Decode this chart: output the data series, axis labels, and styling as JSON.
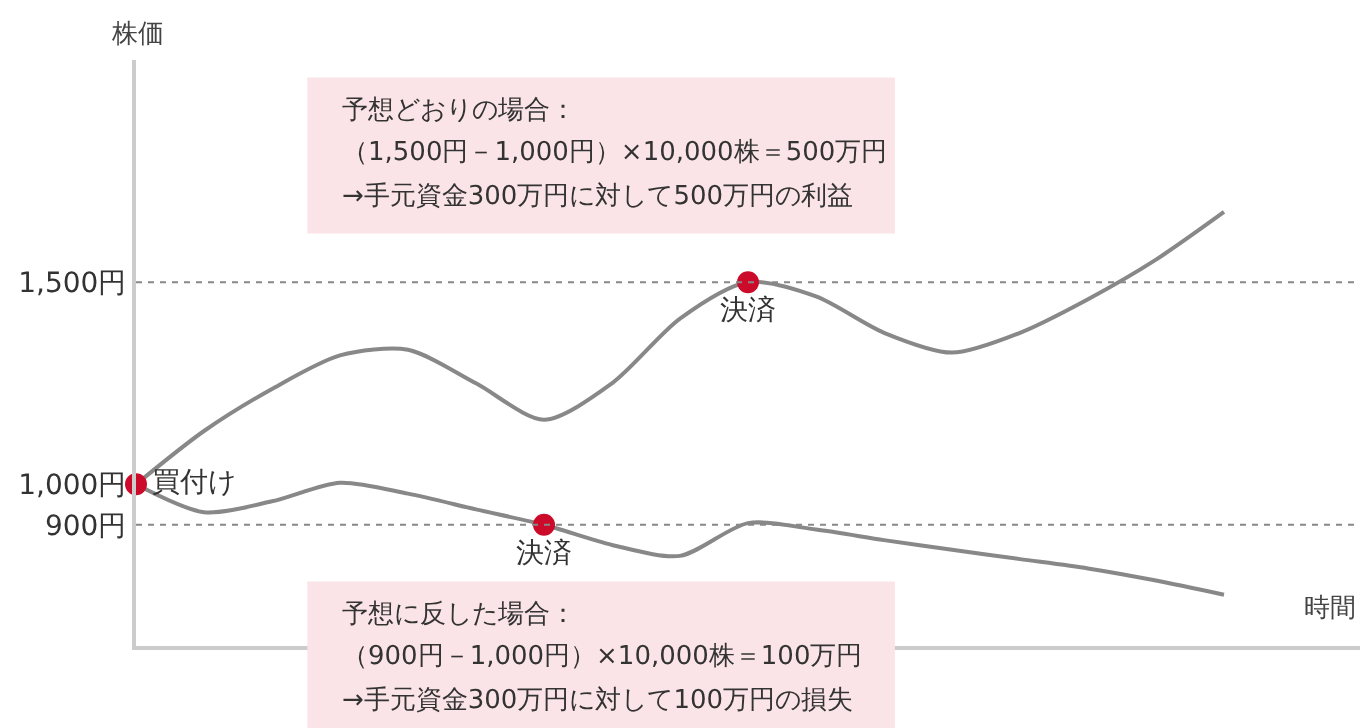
{
  "chart_data": {
    "type": "line",
    "ylabel": "株価",
    "xlabel": "時間",
    "categories": [
      null,
      null,
      null,
      null,
      null,
      null,
      null,
      null,
      null,
      null,
      null,
      null,
      null,
      null,
      null,
      null,
      null,
      null,
      null
    ],
    "series": [
      {
        "color": "#888888",
        "values": [
          1000,
          1132,
          1236,
          1319,
          1333,
          1250,
          1160,
          1250,
          1410,
          1500,
          1465,
          1375,
          1326,
          1375,
          1458,
          1556,
          1674,
          null,
          null
        ]
      },
      {
        "color": "#888888",
        "values": [
          1000,
          931,
          958,
          1004,
          977,
          938,
          900,
          850,
          823,
          904,
          888,
          862,
          838,
          815,
          792,
          762,
          727,
          null,
          null
        ]
      },
      {
        "type": "scatter",
        "color": "#cc0a2a",
        "values": [
          1000,
          null,
          null,
          null,
          null,
          null,
          900,
          null,
          null,
          1500,
          null,
          null,
          null,
          null,
          null,
          null,
          null,
          null,
          null
        ],
        "value_labels": [
          "買付け",
          null,
          null,
          null,
          null,
          null,
          "決済",
          null,
          null,
          "決済",
          null,
          null,
          null,
          null,
          null,
          null,
          null,
          null,
          null
        ]
      }
    ],
    "line_style": "solid",
    "ylim": [
      600,
      2050
    ],
    "yticks": [
      {
        "value": 900,
        "label": "900円"
      },
      {
        "value": 1000,
        "label": "1,000円"
      },
      {
        "value": 1500,
        "label": "1,500円"
      }
    ],
    "ref_lines": [
      {
        "axis": "y",
        "value": 1500,
        "label": null,
        "color": "#888888",
        "line_style": "dotted"
      },
      {
        "axis": "y",
        "value": 900,
        "label": null,
        "color": "#888888",
        "line_style": "dotted"
      }
    ],
    "annotations": [
      "予想どおりの場合：",
      "（1,500円－1,000円）×10,000株＝500万円",
      "→手元資金300万円に対して500万円の利益",
      "予想に反した場合：",
      "（900円－1,000円）×10,000株＝100万円",
      "→手元資金300万円に対して100万円の損失"
    ]
  }
}
